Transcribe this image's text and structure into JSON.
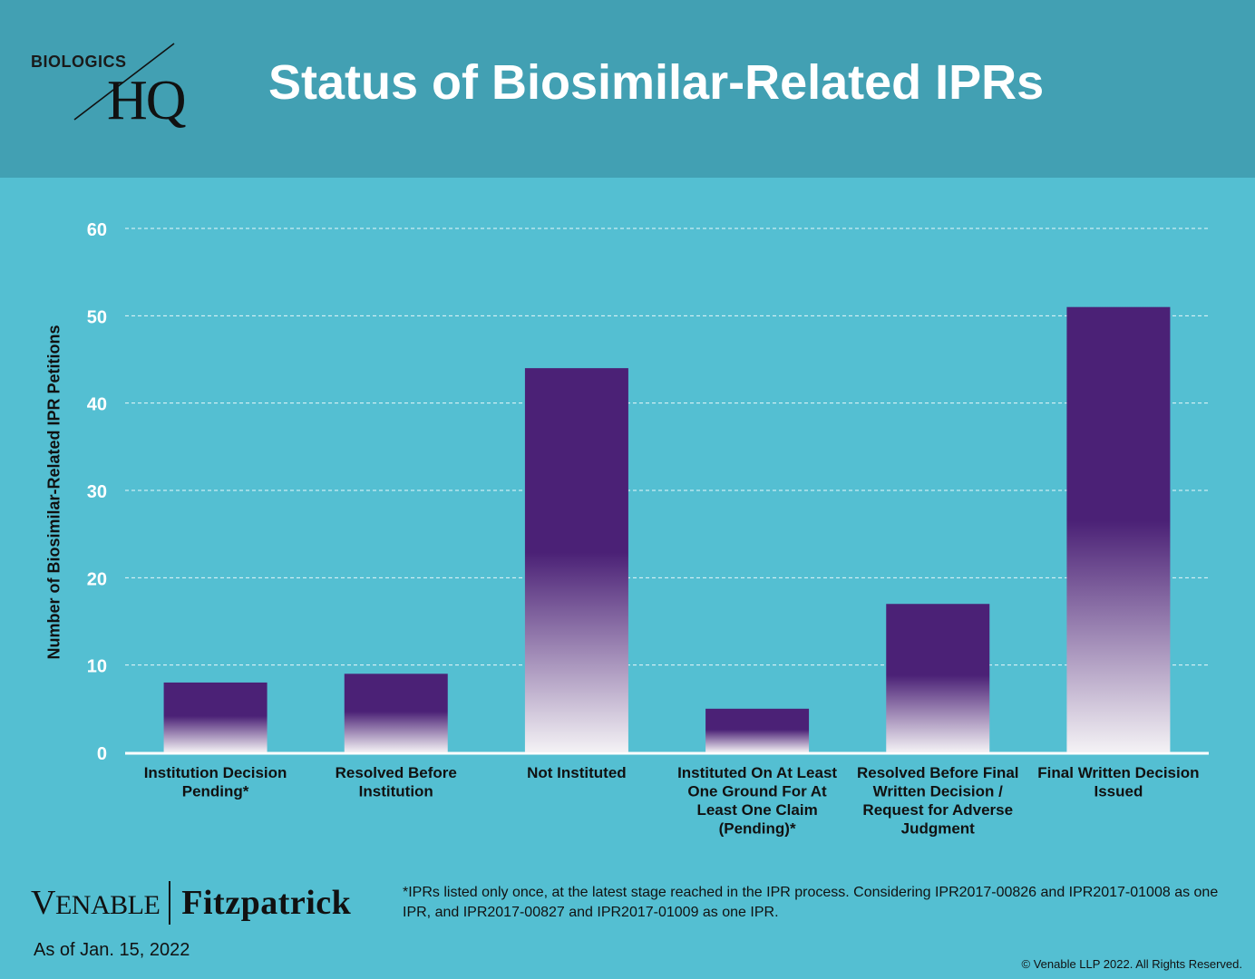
{
  "header": {
    "title": "Status of Biosimilar-Related IPRs",
    "logo_top": "BIOLOGICS",
    "logo_main": "HQ"
  },
  "chart_data": {
    "type": "bar",
    "title": "Status of Biosimilar-Related IPRs",
    "ylabel": "Number of Biosimilar-Related  IPR Petitions",
    "xlabel": "",
    "ylim": [
      0,
      60
    ],
    "yticks": [
      0,
      10,
      20,
      30,
      40,
      50,
      60
    ],
    "grid": true,
    "categories": [
      [
        "Institution Decision",
        "Pending*"
      ],
      [
        "Resolved Before",
        "Institution"
      ],
      [
        "Not Instituted"
      ],
      [
        "Instituted On At Least",
        "One Ground For At",
        "Least One Claim",
        "(Pending)*"
      ],
      [
        "Resolved Before Final",
        "Written Decision /",
        "Request for Adverse",
        "Judgment"
      ],
      [
        "Final Written Decision",
        "Issued"
      ]
    ],
    "values": [
      8,
      9,
      44,
      5,
      17,
      51
    ],
    "colors": {
      "bar_top": "#4b2176",
      "bar_bottom": "#f4f2f5",
      "grid": "#e8f7fa",
      "axis": "#ffffff",
      "tick_text": "#ffffff"
    }
  },
  "footer": {
    "firm_part1": "Venable",
    "firm_part2": "Fitzpatrick",
    "as_of": "As of Jan. 15, 2022",
    "footnote": "*IPRs listed only once, at the latest stage reached in the IPR process.  Considering IPR2017-00826 and IPR2017-01008 as one IPR, and IPR2017-00827 and IPR2017-01009 as one IPR.",
    "copyright": "© Venable LLP 2022. All Rights Reserved."
  }
}
